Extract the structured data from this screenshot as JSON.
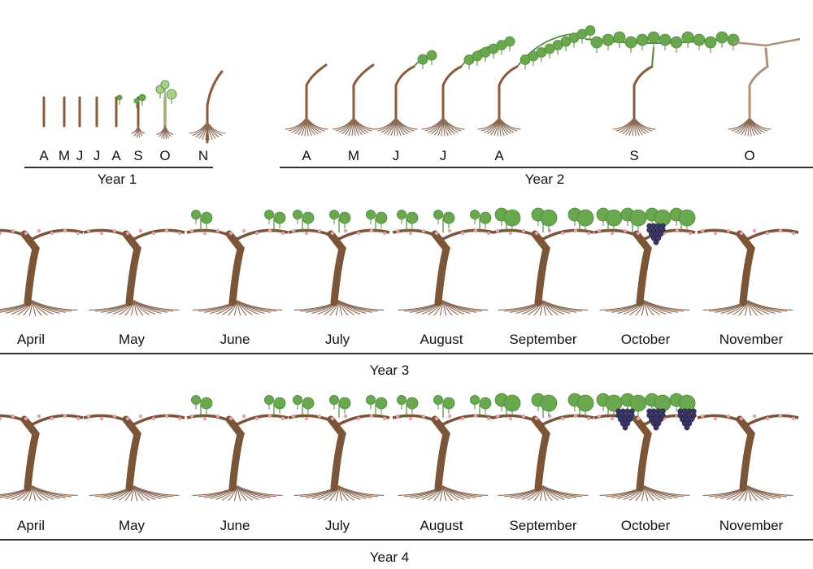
{
  "year1": {
    "title": "Year 1",
    "months": [
      "A",
      "M",
      "J",
      "J",
      "A",
      "S",
      "O",
      "N"
    ],
    "stages": [
      "cutting",
      "cutting",
      "cutting",
      "cutting",
      "bud",
      "leaf",
      "shoot",
      "dormant-cane"
    ]
  },
  "year2": {
    "title": "Year 2",
    "months": [
      "A",
      "M",
      "J",
      "J",
      "A",
      "S",
      "O"
    ],
    "stages": [
      "cane",
      "cane",
      "shoot-start",
      "shoot-grow",
      "shoot-long",
      "canopy-full",
      "pruned"
    ]
  },
  "year3": {
    "title": "Year 3",
    "months": [
      "April",
      "May",
      "June",
      "July",
      "August",
      "September",
      "October",
      "November"
    ],
    "leaf_clusters": [
      0,
      0,
      2,
      3,
      3,
      3,
      4,
      0
    ],
    "fruit_clusters": [
      0,
      0,
      0,
      0,
      0,
      0,
      1,
      0
    ]
  },
  "year4": {
    "title": "Year 4",
    "months": [
      "April",
      "May",
      "June",
      "July",
      "August",
      "September",
      "October",
      "November"
    ],
    "leaf_clusters": [
      0,
      0,
      2,
      3,
      3,
      3,
      4,
      0
    ],
    "fruit_clusters": [
      0,
      0,
      0,
      0,
      0,
      0,
      3,
      0
    ]
  },
  "colors": {
    "trunk": "#7a5538",
    "cane": "#8a5a3a",
    "root": "#8a6a55",
    "leaf": "#6aa84f",
    "leaf_dark": "#4f8a3a",
    "blossom": "#e8a0b0",
    "grape": "#3b3566",
    "axis": "#333333"
  }
}
